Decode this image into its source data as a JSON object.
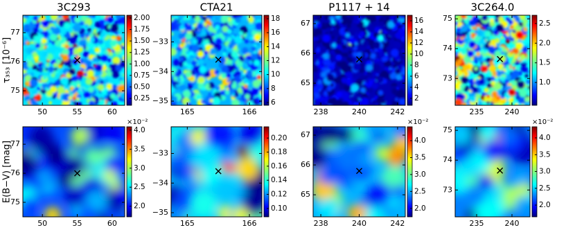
{
  "chart_data": [
    {
      "type": "heatmap",
      "title": "3C293",
      "ylabel": "τ₃₅₃ [10⁻⁶]",
      "xlim": [
        47.2,
        61.8
      ],
      "xticks": [
        50,
        55,
        60
      ],
      "ylim": [
        74.5,
        77.6
      ],
      "yticks": [
        75,
        76,
        77
      ],
      "clim": [
        0.1,
        2.06
      ],
      "cticks": [
        {
          "value": 0.25,
          "label": "0.25"
        },
        {
          "value": 0.5,
          "label": "0.50"
        },
        {
          "value": 0.75,
          "label": "0.75"
        },
        {
          "value": 1,
          "label": "1.00"
        },
        {
          "value": 1.25,
          "label": "1.25"
        },
        {
          "value": 1.5,
          "label": "1.50"
        },
        {
          "value": 1.75,
          "label": "1.75"
        },
        {
          "value": 2,
          "label": "2.00"
        }
      ],
      "marker": {
        "x": 55,
        "y": 76.05
      }
    },
    {
      "type": "heatmap",
      "title": "CTA21",
      "xlim": [
        164.74,
        166.2
      ],
      "xticks": [
        165,
        166
      ],
      "ylim": [
        -35.14,
        -32.1
      ],
      "yticks": [
        {
          "value": -33,
          "label": "−33"
        },
        {
          "value": -34,
          "label": "−34"
        },
        {
          "value": -35,
          "label": "−35"
        }
      ],
      "clim": [
        5.6,
        18.5
      ],
      "cticks": [
        6,
        8,
        10,
        12,
        14,
        16,
        18
      ],
      "marker": {
        "x": 165.5,
        "y": -33.6
      }
    },
    {
      "type": "heatmap",
      "title": "P1117 + 14",
      "xlim": [
        237.6,
        242.4
      ],
      "xticks": [
        238,
        240,
        242
      ],
      "ylim": [
        64.26,
        67.28
      ],
      "yticks": [
        65,
        66,
        67
      ],
      "clim": [
        0.75,
        17
      ],
      "cticks": [
        2,
        4,
        6,
        8,
        10,
        12,
        14,
        16
      ],
      "marker": {
        "x": 240,
        "y": 65.8
      }
    },
    {
      "type": "heatmap",
      "title": "3C264.0",
      "xlim": [
        231.96,
        242.55
      ],
      "xticks": [
        235,
        240
      ],
      "ylim": [
        72.1,
        75.12
      ],
      "yticks": [
        73,
        74,
        75
      ],
      "clim": [
        0.42,
        2.71
      ],
      "cticks": [
        {
          "value": 1,
          "label": "1.0"
        },
        1.5,
        {
          "value": 2,
          "label": "2.0"
        },
        2.5
      ],
      "marker": {
        "x": 238.3,
        "y": 73.65
      }
    },
    {
      "type": "heatmap",
      "ylabel": "E(B−V) [mag]",
      "xlim": [
        47.2,
        61.8
      ],
      "xticks": [
        50,
        55,
        60
      ],
      "ylim": [
        74.5,
        77.6
      ],
      "yticks": [
        75,
        76,
        77
      ],
      "clim": [
        1.72,
        4.09
      ],
      "cticks": [
        {
          "value": 2,
          "label": "2.0"
        },
        2.5,
        {
          "value": 3,
          "label": "3.0"
        },
        3.5,
        {
          "value": 4,
          "label": "4.0"
        }
      ],
      "coffset": "×10⁻²",
      "marker": {
        "x": 55,
        "y": 76.0
      }
    },
    {
      "type": "heatmap",
      "xlim": [
        164.74,
        166.2
      ],
      "xticks": [
        165,
        166
      ],
      "ylim": [
        -35.14,
        -32.1
      ],
      "yticks": [
        {
          "value": -33,
          "label": "−33"
        },
        {
          "value": -34,
          "label": "−34"
        },
        {
          "value": -35,
          "label": "−35"
        }
      ],
      "clim": [
        0.088,
        0.216
      ],
      "cticks": [
        {
          "value": 0.1,
          "label": "0.10"
        },
        0.12,
        0.14,
        0.16,
        0.18,
        {
          "value": 0.2,
          "label": "0.20"
        }
      ],
      "marker": {
        "x": 165.5,
        "y": -33.6
      }
    },
    {
      "type": "heatmap",
      "xlim": [
        237.6,
        242.4
      ],
      "xticks": [
        238,
        240,
        242
      ],
      "ylim": [
        64.26,
        67.28
      ],
      "yticks": [
        65,
        66,
        67
      ],
      "clim": [
        1.75,
        4.41
      ],
      "cticks": [
        {
          "value": 2,
          "label": "2.0"
        },
        2.5,
        {
          "value": 3,
          "label": "3.0"
        },
        3.5,
        {
          "value": 4,
          "label": "4.0"
        }
      ],
      "coffset": "×10⁻²",
      "marker": {
        "x": 240,
        "y": 65.8
      }
    },
    {
      "type": "heatmap",
      "xlim": [
        231.96,
        242.55
      ],
      "xticks": [
        235,
        240
      ],
      "ylim": [
        72.1,
        75.12
      ],
      "yticks": [
        73,
        74,
        75
      ],
      "clim": [
        1.65,
        4.33
      ],
      "cticks": [
        {
          "value": 2,
          "label": "2.0"
        },
        2.5,
        {
          "value": 3,
          "label": "3.0"
        },
        3.5,
        {
          "value": 4,
          "label": "4.0"
        }
      ],
      "coffset": "×10⁻²",
      "marker": {
        "x": 238.3,
        "y": 73.65
      }
    }
  ]
}
